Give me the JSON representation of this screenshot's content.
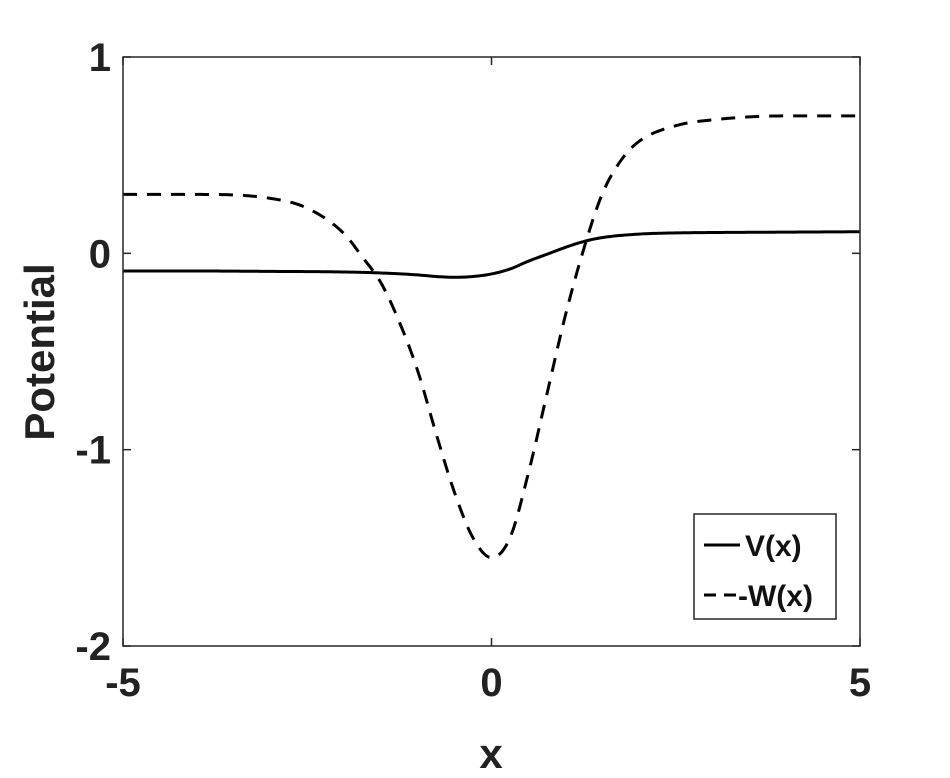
{
  "chart_data": {
    "type": "line",
    "title": "",
    "xlabel": "x",
    "ylabel": "Potential",
    "xlim": [
      -5,
      5
    ],
    "ylim": [
      -2,
      1
    ],
    "xticks": [
      -5,
      0,
      5
    ],
    "yticks": [
      -2,
      -1,
      0,
      1
    ],
    "grid": false,
    "legend_position": "bottom-right",
    "series": [
      {
        "name": "V(x)",
        "style": "solid",
        "color": "#000000",
        "x": [
          -5,
          -4,
          -3,
          -2,
          -1.5,
          -1,
          -0.75,
          -0.5,
          -0.25,
          0,
          0.25,
          0.5,
          0.75,
          1,
          1.25,
          1.5,
          2,
          2.5,
          3,
          4,
          5
        ],
        "y": [
          -0.09,
          -0.09,
          -0.092,
          -0.095,
          -0.1,
          -0.11,
          -0.118,
          -0.122,
          -0.118,
          -0.105,
          -0.08,
          -0.04,
          -0.005,
          0.03,
          0.06,
          0.08,
          0.098,
          0.104,
          0.106,
          0.108,
          0.11
        ]
      },
      {
        "name": "-W(x)",
        "style": "dashed",
        "color": "#000000",
        "x": [
          -5,
          -4,
          -3,
          -2.5,
          -2,
          -1.75,
          -1.5,
          -1.25,
          -1,
          -0.75,
          -0.5,
          -0.25,
          0,
          0.25,
          0.5,
          0.75,
          1,
          1.25,
          1.5,
          1.75,
          2,
          2.5,
          3,
          4,
          5
        ],
        "y": [
          0.3,
          0.3,
          0.28,
          0.23,
          0.1,
          -0.02,
          -0.15,
          -0.35,
          -0.6,
          -0.92,
          -1.22,
          -1.45,
          -1.55,
          -1.45,
          -1.12,
          -0.72,
          -0.32,
          0.02,
          0.3,
          0.47,
          0.57,
          0.65,
          0.68,
          0.7,
          0.7
        ]
      }
    ]
  }
}
